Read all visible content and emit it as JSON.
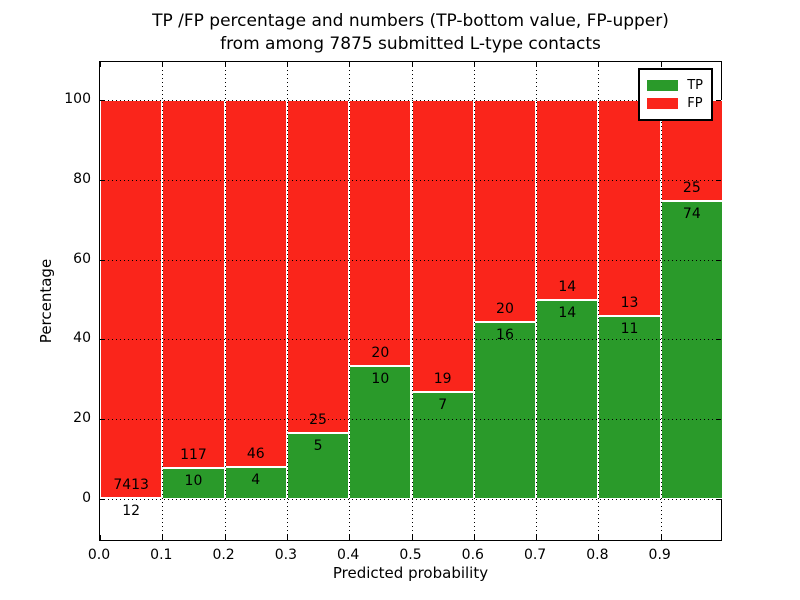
{
  "title_line1": "TP /FP percentage and numbers (TP-bottom value, FP-upper)",
  "title_line2": "from among 7875 submitted L-type contacts",
  "axes": {
    "xlabel": "Predicted probability",
    "ylabel": "Percentage"
  },
  "legend": {
    "position": "upper right",
    "entries": [
      {
        "label": "TP",
        "color": "#2a9a2a"
      },
      {
        "label": "FP",
        "color": "#fa251b"
      }
    ]
  },
  "colors": {
    "tp_green": "#2a9a2a",
    "fp_red": "#fa251b",
    "grid": "#000000",
    "background": "#ffffff"
  },
  "chart_data": {
    "type": "bar",
    "stacked": true,
    "normalized_to_percent": true,
    "title": "TP /FP percentage and numbers (TP-bottom value, FP-upper) from among 7875 submitted L-type contacts",
    "xlabel": "Predicted probability",
    "ylabel": "Percentage",
    "total_contacts": 7875,
    "bin_width": 0.1,
    "bin_starts": [
      0.0,
      0.1,
      0.2,
      0.3,
      0.4,
      0.5,
      0.6,
      0.7,
      0.8,
      0.9
    ],
    "categories": [
      "0.0-0.1",
      "0.1-0.2",
      "0.2-0.3",
      "0.3-0.4",
      "0.4-0.5",
      "0.5-0.6",
      "0.6-0.7",
      "0.7-0.8",
      "0.8-0.9",
      "0.9-1.0"
    ],
    "series": [
      {
        "name": "TP",
        "color": "#2a9a2a",
        "counts": [
          12,
          10,
          4,
          5,
          10,
          7,
          16,
          14,
          11,
          74
        ],
        "percent": [
          0.16,
          7.87,
          8.0,
          16.67,
          33.33,
          26.92,
          44.44,
          50.0,
          45.83,
          74.75
        ]
      },
      {
        "name": "FP",
        "color": "#fa251b",
        "counts": [
          7413,
          117,
          46,
          25,
          20,
          19,
          20,
          14,
          13,
          25
        ],
        "percent": [
          99.84,
          92.13,
          92.0,
          83.33,
          66.67,
          73.08,
          55.56,
          50.0,
          54.17,
          25.25
        ]
      }
    ],
    "bar_value_labels": "counts (TP number below the green/red boundary, FP number above it)",
    "xticks": [
      "0.0",
      "0.1",
      "0.2",
      "0.3",
      "0.4",
      "0.5",
      "0.6",
      "0.7",
      "0.8",
      "0.9"
    ],
    "yticks": [
      0,
      20,
      40,
      60,
      80,
      100
    ],
    "xlim": [
      0.0,
      1.0
    ],
    "ylim": [
      -10.5,
      109.5
    ],
    "grid": {
      "visible": true,
      "style": "dotted",
      "color": "#000000",
      "above_bars": true
    },
    "legend_position": "upper right"
  }
}
